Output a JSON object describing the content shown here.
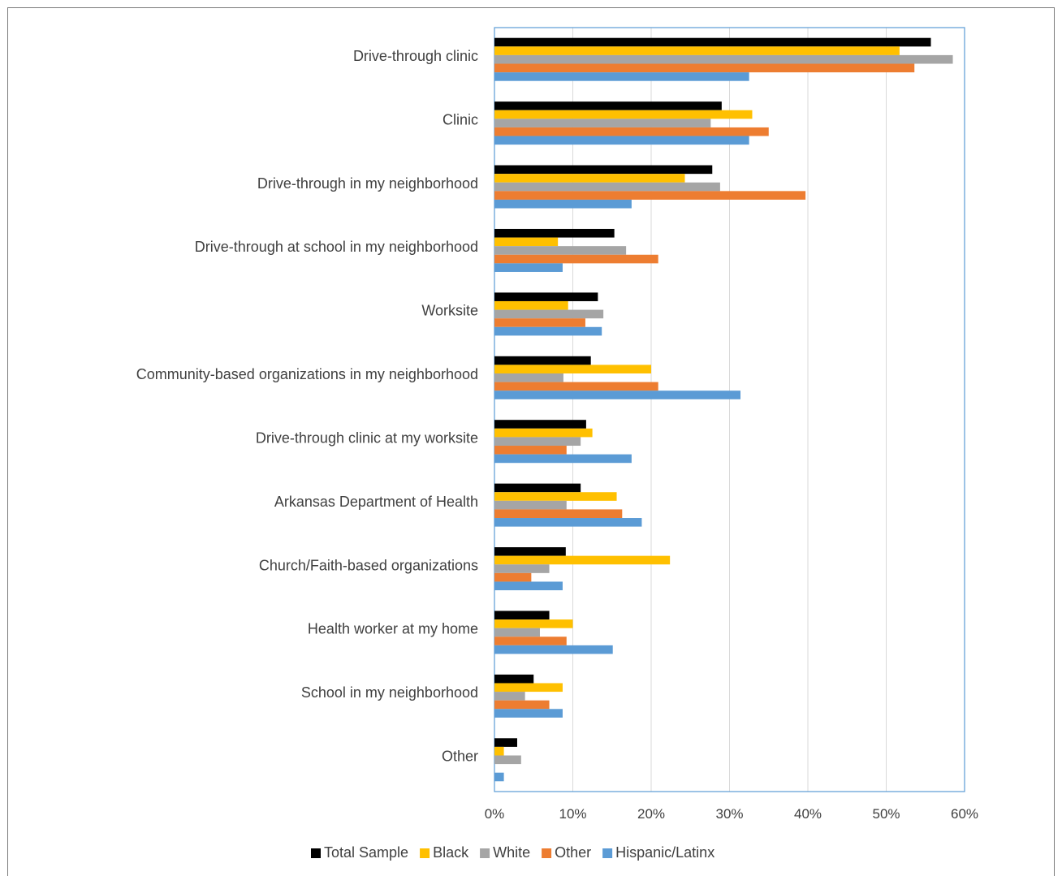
{
  "chart_data": {
    "type": "bar",
    "orientation": "horizontal",
    "title": "",
    "xlabel": "",
    "ylabel": "",
    "xlim": [
      0,
      60
    ],
    "x_ticks": [
      "0%",
      "10%",
      "20%",
      "30%",
      "40%",
      "50%",
      "60%"
    ],
    "grid": true,
    "legend_position": "bottom",
    "categories": [
      "Drive-through clinic",
      "Clinic",
      "Drive-through in my neighborhood",
      "Drive-through at school in my neighborhood",
      "Worksite",
      "Community-based organizations in my neighborhood",
      "Drive-through clinic at my worksite",
      "Arkansas Department of Health",
      "Church/Faith-based organizations",
      "Health worker at my home",
      "School in my neighborhood",
      "Other"
    ],
    "series": [
      {
        "name": "Total Sample",
        "color": "#000000",
        "values": [
          55.7,
          29.0,
          27.8,
          15.3,
          13.2,
          12.3,
          11.7,
          11.0,
          9.1,
          7.0,
          5.0,
          2.9
        ]
      },
      {
        "name": "Black",
        "color": "#ffc000",
        "values": [
          51.7,
          32.9,
          24.3,
          8.1,
          9.4,
          20.0,
          12.5,
          15.6,
          22.4,
          10.0,
          8.7,
          1.2
        ]
      },
      {
        "name": "White",
        "color": "#a5a5a5",
        "values": [
          58.5,
          27.6,
          28.8,
          16.8,
          13.9,
          8.8,
          11.0,
          9.2,
          7.0,
          5.8,
          3.9,
          3.4
        ]
      },
      {
        "name": "Other",
        "color": "#ed7d31",
        "values": [
          53.6,
          35.0,
          39.7,
          20.9,
          11.6,
          20.9,
          9.2,
          16.3,
          4.7,
          9.2,
          7.0,
          0
        ]
      },
      {
        "name": "Hispanic/Latinx",
        "color": "#5b9bd5",
        "values": [
          32.5,
          32.5,
          17.5,
          8.7,
          13.7,
          31.4,
          17.5,
          18.8,
          8.7,
          15.1,
          8.7,
          1.2
        ]
      }
    ]
  }
}
